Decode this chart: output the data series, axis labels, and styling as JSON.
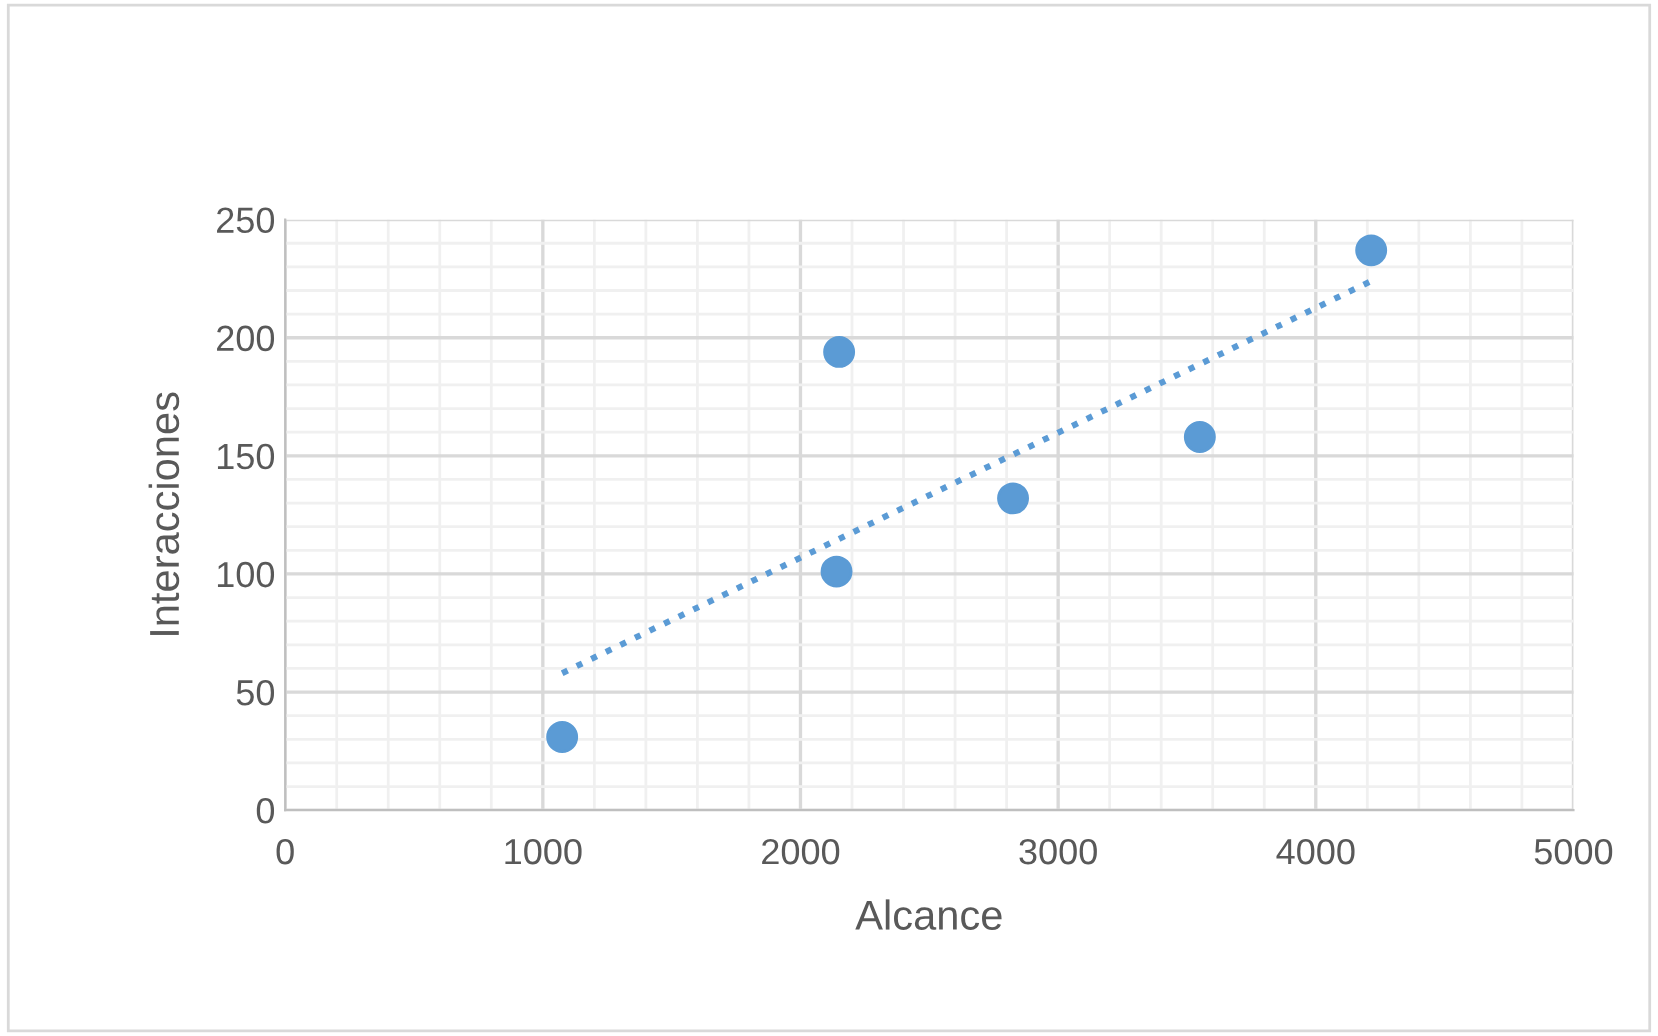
{
  "chart_data": {
    "type": "scatter",
    "xlabel": "Alcance",
    "ylabel": "Interacciones",
    "xlim": [
      0,
      5000
    ],
    "xticks": [
      0,
      1000,
      2000,
      3000,
      4000,
      5000
    ],
    "ylim": [
      0,
      250
    ],
    "yticks": [
      0,
      50,
      100,
      150,
      200,
      250
    ],
    "grid": true,
    "series": [
      {
        "color": "#5b9bd5",
        "marker": "circle",
        "x": [
          1075,
          2140,
          2150,
          2825,
          3550,
          4215
        ],
        "values": [
          31,
          101,
          194,
          132,
          158,
          237
        ]
      },
      {
        "type": "line",
        "color": "#5b9bd5",
        "line_style": "dotted",
        "marker": "none",
        "x": [
          1075,
          4215
        ],
        "values": [
          58,
          224
        ]
      }
    ]
  }
}
